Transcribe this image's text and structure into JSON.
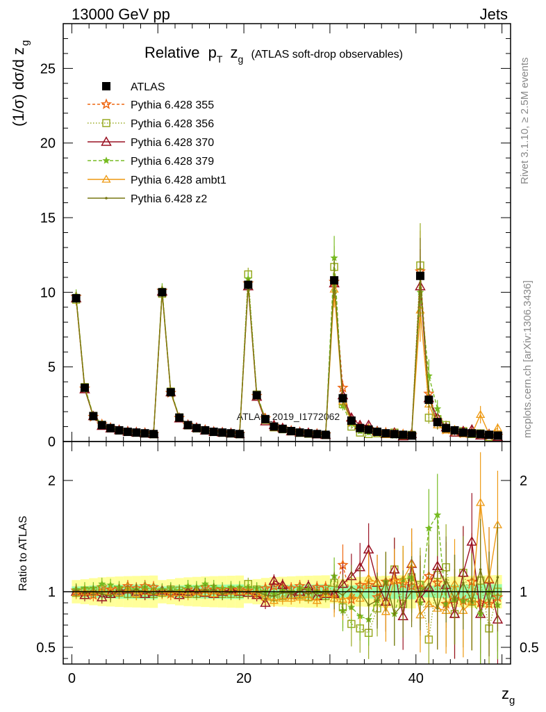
{
  "header": {
    "left": "13000 GeV pp",
    "right": "Jets"
  },
  "chart_data": {
    "type": "line",
    "title": "Relative",
    "title_pt": "p",
    "title_pt_sub": "T",
    "title_zg": "z",
    "title_zg_sub": "g",
    "title_suffix": "(ATLAS soft-drop observables)",
    "ylabel_main": "(1/σ) dσ/d z",
    "ylabel_main_sub": "g",
    "ylabel_ratio": "Ratio to ATLAS",
    "xlabel": "z",
    "xlabel_sub": "g",
    "watermark": "ATLAS_2019_I1772062",
    "side_text_top": "Rivet 3.1.10, ≥ 2.5M events",
    "side_text_bottom": "mcplots.cern.ch [arXiv:1306.3436]",
    "xlim": [
      -1,
      51
    ],
    "ylim_main": [
      0,
      28
    ],
    "ylim_ratio": [
      0.35,
      2.35
    ],
    "xticks_major": [
      0,
      20,
      40
    ],
    "yticks_main": [
      0,
      5,
      10,
      15,
      20,
      25
    ],
    "yticks_ratio": [
      0.5,
      1,
      2
    ],
    "legend_position": "top-left",
    "x": [
      0.5,
      1.5,
      2.5,
      3.5,
      4.5,
      5.5,
      6.5,
      7.5,
      8.5,
      9.5,
      10.5,
      11.5,
      12.5,
      13.5,
      14.5,
      15.5,
      16.5,
      17.5,
      18.5,
      19.5,
      20.5,
      21.5,
      22.5,
      23.5,
      24.5,
      25.5,
      26.5,
      27.5,
      28.5,
      29.5,
      30.5,
      31.5,
      32.5,
      33.5,
      34.5,
      35.5,
      36.5,
      37.5,
      38.5,
      39.5,
      40.5,
      41.5,
      42.5,
      43.5,
      44.5,
      45.5,
      46.5,
      47.5,
      48.5,
      49.5
    ],
    "atlas": {
      "name": "ATLAS",
      "values": [
        9.6,
        3.6,
        1.7,
        1.1,
        0.9,
        0.75,
        0.65,
        0.6,
        0.55,
        0.5,
        10.0,
        3.3,
        1.6,
        1.1,
        0.9,
        0.75,
        0.65,
        0.6,
        0.55,
        0.5,
        10.5,
        3.1,
        1.5,
        1.0,
        0.85,
        0.7,
        0.6,
        0.55,
        0.5,
        0.45,
        10.8,
        2.9,
        1.4,
        0.9,
        0.8,
        0.65,
        0.55,
        0.5,
        0.45,
        0.4,
        11.1,
        2.8,
        1.3,
        0.9,
        0.75,
        0.6,
        0.55,
        0.5,
        0.45,
        0.4
      ]
    },
    "series": [
      {
        "name": "Pythia 6.428 355",
        "color": "#ee6611",
        "marker": "star",
        "dash": "4,3",
        "values": [
          9.7,
          3.55,
          1.65,
          1.15,
          0.92,
          0.77,
          0.68,
          0.62,
          0.58,
          0.52,
          10.1,
          3.25,
          1.58,
          1.12,
          0.9,
          0.78,
          0.66,
          0.61,
          0.56,
          0.51,
          10.6,
          3.05,
          1.55,
          1.05,
          0.88,
          0.72,
          0.63,
          0.56,
          0.52,
          0.47,
          10.7,
          3.6,
          1.3,
          0.95,
          0.85,
          0.62,
          0.6,
          0.55,
          0.48,
          0.42,
          11.4,
          3.2,
          1.4,
          0.8,
          0.7,
          0.55,
          0.6,
          0.45,
          0.4,
          0.38
        ],
        "ratio": [
          1.01,
          0.99,
          0.97,
          1.04,
          1.02,
          1.03,
          1.05,
          1.03,
          1.05,
          1.04,
          1.01,
          0.98,
          0.99,
          1.02,
          1.0,
          1.04,
          1.02,
          1.02,
          1.02,
          1.02,
          1.01,
          0.98,
          1.03,
          1.05,
          1.04,
          1.03,
          1.05,
          1.02,
          1.04,
          1.04,
          0.99,
          1.24,
          0.93,
          1.06,
          1.06,
          0.95,
          1.09,
          1.1,
          1.07,
          1.05,
          1.03,
          1.14,
          1.08,
          0.89,
          0.93,
          0.92,
          1.09,
          0.9,
          0.89,
          0.95
        ]
      },
      {
        "name": "Pythia 6.428 356",
        "color": "#99aa22",
        "marker": "square",
        "dash": "1.5,2.5",
        "values": [
          9.5,
          3.65,
          1.72,
          1.12,
          0.88,
          0.74,
          0.64,
          0.59,
          0.54,
          0.49,
          9.9,
          3.35,
          1.62,
          1.08,
          0.88,
          0.74,
          0.64,
          0.59,
          0.54,
          0.49,
          11.2,
          3.15,
          1.45,
          0.95,
          0.82,
          0.68,
          0.58,
          0.52,
          0.48,
          0.43,
          11.7,
          2.5,
          1.0,
          0.6,
          0.5,
          0.55,
          0.5,
          0.6,
          0.4,
          0.45,
          11.8,
          1.6,
          1.5,
          1.1,
          0.6,
          0.7,
          0.5,
          0.55,
          0.3,
          0.4
        ],
        "ratio": [
          0.99,
          1.01,
          1.01,
          1.02,
          0.98,
          0.99,
          0.98,
          0.98,
          0.98,
          0.98,
          0.99,
          1.02,
          1.01,
          0.98,
          0.98,
          0.99,
          0.98,
          0.98,
          0.98,
          0.98,
          1.07,
          1.02,
          0.97,
          0.95,
          0.96,
          0.97,
          0.97,
          0.95,
          0.96,
          0.96,
          1.08,
          0.86,
          0.71,
          0.67,
          0.63,
          0.85,
          0.91,
          1.2,
          0.89,
          1.13,
          1.06,
          0.57,
          1.15,
          1.22,
          0.8,
          1.17,
          0.91,
          1.1,
          0.67,
          1.0
        ]
      },
      {
        "name": "Pythia 6.428 370",
        "color": "#991122",
        "marker": "triangle",
        "dash": "",
        "values": [
          9.6,
          3.5,
          1.7,
          1.05,
          0.88,
          0.76,
          0.66,
          0.6,
          0.54,
          0.5,
          10.05,
          3.3,
          1.55,
          1.1,
          0.92,
          0.74,
          0.64,
          0.6,
          0.56,
          0.5,
          10.4,
          3.0,
          1.35,
          1.1,
          0.9,
          0.68,
          0.6,
          0.58,
          0.48,
          0.44,
          10.6,
          3.1,
          1.6,
          1.1,
          1.1,
          0.7,
          0.5,
          0.6,
          0.35,
          0.5,
          10.4,
          2.9,
          1.6,
          0.95,
          0.6,
          0.7,
          0.8,
          0.4,
          0.5,
          0.3
        ],
        "ratio": [
          1.0,
          0.97,
          1.0,
          0.95,
          0.98,
          1.01,
          1.02,
          1.0,
          0.98,
          1.0,
          1.01,
          1.0,
          0.97,
          1.0,
          1.02,
          0.99,
          0.98,
          1.0,
          1.02,
          1.0,
          0.99,
          0.97,
          0.9,
          1.1,
          1.06,
          0.97,
          1.0,
          1.05,
          0.96,
          0.98,
          0.98,
          1.07,
          1.14,
          1.22,
          1.38,
          1.08,
          0.91,
          1.2,
          0.78,
          1.25,
          0.94,
          1.04,
          1.23,
          1.06,
          0.8,
          1.17,
          1.45,
          0.8,
          1.11,
          0.75
        ]
      },
      {
        "name": "Pythia 6.428 379",
        "color": "#77bb22",
        "marker": "smallstar",
        "dash": "5,3",
        "values": [
          9.8,
          3.7,
          1.75,
          1.18,
          0.95,
          0.78,
          0.67,
          0.61,
          0.57,
          0.51,
          10.2,
          3.4,
          1.62,
          1.15,
          0.94,
          0.8,
          0.68,
          0.62,
          0.57,
          0.52,
          10.9,
          3.2,
          1.5,
          0.98,
          0.86,
          0.7,
          0.62,
          0.56,
          0.5,
          0.45,
          12.3,
          2.4,
          1.2,
          0.7,
          0.6,
          0.6,
          0.6,
          0.4,
          0.5,
          0.45,
          10.0,
          4.4,
          2.2,
          0.8,
          0.7,
          0.55,
          0.5,
          0.4,
          0.45,
          0.35
        ],
        "ratio": [
          1.02,
          1.03,
          1.03,
          1.07,
          1.06,
          1.04,
          1.03,
          1.02,
          1.04,
          1.02,
          1.02,
          1.03,
          1.01,
          1.05,
          1.04,
          1.07,
          1.05,
          1.03,
          1.04,
          1.04,
          1.04,
          1.03,
          1.0,
          0.98,
          1.01,
          1.0,
          1.03,
          1.02,
          1.0,
          1.0,
          1.14,
          0.83,
          0.86,
          0.78,
          0.75,
          0.92,
          1.09,
          0.8,
          1.11,
          1.13,
          0.9,
          1.57,
          1.69,
          0.89,
          0.93,
          0.92,
          0.91,
          0.8,
          1.0,
          0.88
        ]
      },
      {
        "name": "Pythia 6.428 ambt1",
        "color": "#ee9911",
        "marker": "opentriangle",
        "dash": "",
        "values": [
          9.55,
          3.6,
          1.68,
          1.1,
          0.9,
          0.74,
          0.66,
          0.59,
          0.55,
          0.5,
          9.95,
          3.28,
          1.58,
          1.08,
          0.9,
          0.74,
          0.64,
          0.6,
          0.55,
          0.5,
          10.45,
          3.08,
          1.42,
          0.92,
          0.8,
          0.66,
          0.57,
          0.52,
          0.46,
          0.44,
          10.2,
          2.7,
          1.35,
          0.85,
          0.9,
          0.7,
          0.45,
          0.55,
          0.5,
          0.5,
          8.8,
          2.5,
          1.1,
          0.75,
          0.8,
          0.5,
          0.5,
          1.8,
          0.5,
          0.9
        ],
        "ratio": [
          0.99,
          1.0,
          0.99,
          1.0,
          1.0,
          0.99,
          1.02,
          0.98,
          1.0,
          1.0,
          0.99,
          0.99,
          0.99,
          0.98,
          1.0,
          0.99,
          0.98,
          1.0,
          1.0,
          1.0,
          1.0,
          0.99,
          0.95,
          0.92,
          0.94,
          0.94,
          0.95,
          0.95,
          0.92,
          0.98,
          0.94,
          0.93,
          0.96,
          0.94,
          1.12,
          1.08,
          0.82,
          1.1,
          1.11,
          1.25,
          0.79,
          0.89,
          0.85,
          0.83,
          1.07,
          0.83,
          0.91,
          1.8,
          1.11,
          1.6
        ]
      },
      {
        "name": "Pythia 6.428 z2",
        "color": "#777711",
        "marker": "dot",
        "dash": "",
        "values": [
          9.65,
          3.55,
          1.7,
          1.08,
          0.86,
          0.76,
          0.65,
          0.61,
          0.55,
          0.49,
          10.0,
          3.32,
          1.6,
          1.1,
          0.9,
          0.76,
          0.66,
          0.59,
          0.55,
          0.5,
          10.5,
          3.1,
          1.45,
          0.96,
          0.84,
          0.69,
          0.6,
          0.54,
          0.5,
          0.44,
          10.9,
          2.8,
          1.45,
          0.9,
          0.7,
          0.6,
          0.6,
          0.4,
          0.4,
          0.4,
          11.0,
          3.0,
          1.1,
          1.0,
          0.7,
          0.65,
          0.5,
          0.6,
          0.4,
          0.45
        ],
        "ratio": [
          1.01,
          0.99,
          1.0,
          0.98,
          0.96,
          1.01,
          1.0,
          1.02,
          1.0,
          0.98,
          1.0,
          1.01,
          1.0,
          1.0,
          1.0,
          1.01,
          1.02,
          0.98,
          1.0,
          1.0,
          1.0,
          1.0,
          0.97,
          0.96,
          0.99,
          0.99,
          1.0,
          0.98,
          1.0,
          0.98,
          1.01,
          0.97,
          1.04,
          1.0,
          0.88,
          0.92,
          1.09,
          0.8,
          0.89,
          1.0,
          0.99,
          1.07,
          0.85,
          1.11,
          0.93,
          1.08,
          0.91,
          1.2,
          0.89,
          1.13
        ]
      }
    ]
  }
}
